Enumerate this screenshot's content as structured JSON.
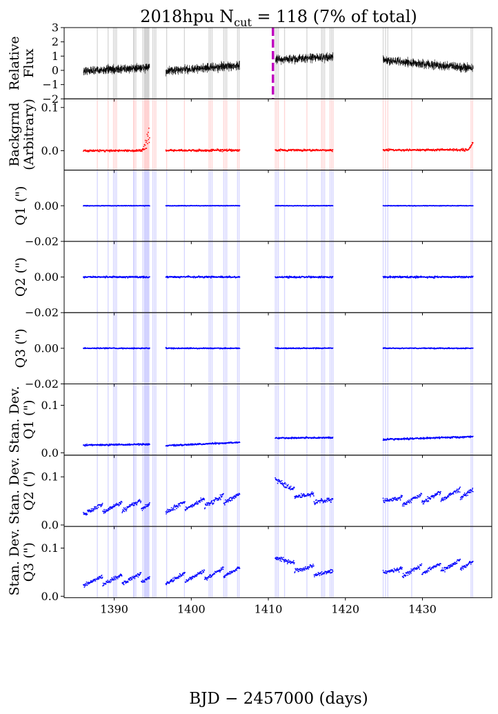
{
  "chart_data": {
    "type": "scatter",
    "title_main": "2018hpu  N",
    "title_sub": "cut",
    "title_rest": " = 118 (7% of total)",
    "xlabel": "BJD − 2457000 (days)",
    "xlim": [
      1383.5,
      1439.0
    ],
    "xticks": [
      1390,
      1400,
      1410,
      1420,
      1430
    ],
    "vline": 1410.6,
    "segments": [
      [
        1386.0,
        1394.6
      ],
      [
        1396.7,
        1406.3
      ],
      [
        1410.9,
        1418.4
      ],
      [
        1424.9,
        1436.6
      ]
    ],
    "cut_times": [
      1387.8,
      1389.2,
      1389.9,
      1390.1,
      1390.3,
      1392.5,
      1392.6,
      1392.8,
      1393.7,
      1393.9,
      1394.0,
      1394.1,
      1394.2,
      1394.3,
      1394.4,
      1394.5,
      1395.0,
      1395.2,
      1395.4,
      1396.8,
      1399.1,
      1402.3,
      1402.5,
      1402.7,
      1404.2,
      1404.4,
      1404.6,
      1406.0,
      1406.2,
      1410.9,
      1411.1,
      1411.3,
      1412.1,
      1415.0,
      1416.9,
      1417.1,
      1417.3,
      1418.0,
      1418.2,
      1418.4,
      1424.9,
      1425.2,
      1425.5,
      1428.6,
      1436.3,
      1436.5
    ],
    "panels": [
      {
        "key": "flux",
        "ylabel": [
          "Relative",
          "Flux"
        ],
        "ylim": [
          -2,
          3
        ],
        "yticks": [
          -2,
          -1,
          0,
          1,
          2,
          3
        ],
        "ytick_labels": [
          "−2",
          "−1",
          "0",
          "1",
          "2",
          "3"
        ],
        "color": "#000000",
        "band_color": "#b3b3b3",
        "style": "line",
        "level": [
          [
            1386.0,
            -0.05
          ],
          [
            1394.5,
            0.2
          ],
          [
            1396.7,
            -0.05
          ],
          [
            1406.3,
            0.35
          ],
          [
            1410.9,
            0.75
          ],
          [
            1418.4,
            0.95
          ],
          [
            1424.9,
            0.7
          ],
          [
            1436.5,
            0.15
          ]
        ],
        "noise": 0.28
      },
      {
        "key": "background",
        "ylabel": [
          "Backgrnd",
          "(Arbitrary)"
        ],
        "ylim": [
          -0.045,
          0.12
        ],
        "yticks": [
          0.0,
          0.1
        ],
        "ytick_labels": [
          "0.0",
          "0.1"
        ],
        "color": "#ff0000",
        "band_color": "#ffb3b3",
        "style": "dots",
        "level": [
          [
            1386.0,
            0.0
          ],
          [
            1436.3,
            0.002
          ]
        ],
        "noise": 0.002
      },
      {
        "key": "q1",
        "ylabel": [
          "Q1 (\")"
        ],
        "ylim": [
          -0.02,
          0.02
        ],
        "yticks": [
          -0.02,
          0.0
        ],
        "ytick_labels": [
          "−0.02",
          "0.00"
        ],
        "color": "#0000ff",
        "band_color": "#b3b3ff",
        "style": "dots",
        "level": [
          [
            1386.0,
            0.0
          ],
          [
            1436.5,
            0.0
          ]
        ],
        "noise": 0.00012
      },
      {
        "key": "q2",
        "ylabel": [
          "Q2 (\")"
        ],
        "ylim": [
          -0.02,
          0.02
        ],
        "yticks": [
          -0.02,
          0.0
        ],
        "ytick_labels": [
          "−0.02",
          "0.00"
        ],
        "color": "#0000ff",
        "band_color": "#b3b3ff",
        "style": "dots",
        "level": [
          [
            1386.0,
            0.0
          ],
          [
            1436.5,
            0.0
          ]
        ],
        "noise": 0.0004
      },
      {
        "key": "q3",
        "ylabel": [
          "Q3 (\")"
        ],
        "ylim": [
          -0.02,
          0.02
        ],
        "yticks": [
          -0.02,
          0.0
        ],
        "ytick_labels": [
          "−0.02",
          "0.00"
        ],
        "color": "#0000ff",
        "band_color": "#b3b3ff",
        "style": "dots",
        "level": [
          [
            1386.0,
            0.0
          ],
          [
            1436.5,
            0.0
          ]
        ],
        "noise": 0.00025
      },
      {
        "key": "sd_q1",
        "ylabel": [
          "Stan. Dev.",
          "Q1 (\")"
        ],
        "ylim": [
          -0.005,
          0.145
        ],
        "yticks": [
          0.0,
          0.1
        ],
        "ytick_labels": [
          "0.0",
          "0.1"
        ],
        "color": "#0000ff",
        "band_color": "#b3b3ff",
        "style": "dots",
        "level": [
          [
            1386.0,
            0.016
          ],
          [
            1394.5,
            0.018
          ],
          [
            1396.7,
            0.015
          ],
          [
            1406.3,
            0.022
          ],
          [
            1410.9,
            0.031
          ],
          [
            1418.4,
            0.032
          ],
          [
            1424.9,
            0.028
          ],
          [
            1436.5,
            0.034
          ]
        ],
        "noise": 0.0015
      },
      {
        "key": "sd_q2",
        "ylabel": [
          "Stan. Dev.",
          "Q2 (\")"
        ],
        "ylim": [
          -0.003,
          0.145
        ],
        "yticks": [
          0.0,
          0.1
        ],
        "ytick_labels": [
          "0.0",
          "0.1"
        ],
        "color": "#0000ff",
        "band_color": "#b3b3ff",
        "style": "dots",
        "level": [
          [
            1386.0,
            0.022
          ],
          [
            1394.5,
            0.035
          ],
          [
            1396.7,
            0.025
          ],
          [
            1406.3,
            0.05
          ],
          [
            1410.9,
            0.095
          ],
          [
            1413.0,
            0.06
          ],
          [
            1418.4,
            0.035
          ],
          [
            1424.9,
            0.05
          ],
          [
            1427.0,
            0.04
          ],
          [
            1436.5,
            0.06
          ]
        ],
        "noise": 0.004
      },
      {
        "key": "sd_q3",
        "ylabel": [
          "Stan. Dev.",
          "Q3 (\")"
        ],
        "ylim": [
          -0.003,
          0.145
        ],
        "yticks": [
          0.0,
          0.1
        ],
        "ytick_labels": [
          "0.0",
          "0.1"
        ],
        "color": "#0000ff",
        "band_color": "#b3b3ff",
        "style": "dots",
        "level": [
          [
            1386.0,
            0.022
          ],
          [
            1394.5,
            0.03
          ],
          [
            1396.7,
            0.025
          ],
          [
            1406.3,
            0.045
          ],
          [
            1410.9,
            0.08
          ],
          [
            1413.0,
            0.055
          ],
          [
            1418.4,
            0.035
          ],
          [
            1424.9,
            0.05
          ],
          [
            1427.0,
            0.04
          ],
          [
            1436.5,
            0.06
          ]
        ],
        "noise": 0.0035
      }
    ]
  }
}
